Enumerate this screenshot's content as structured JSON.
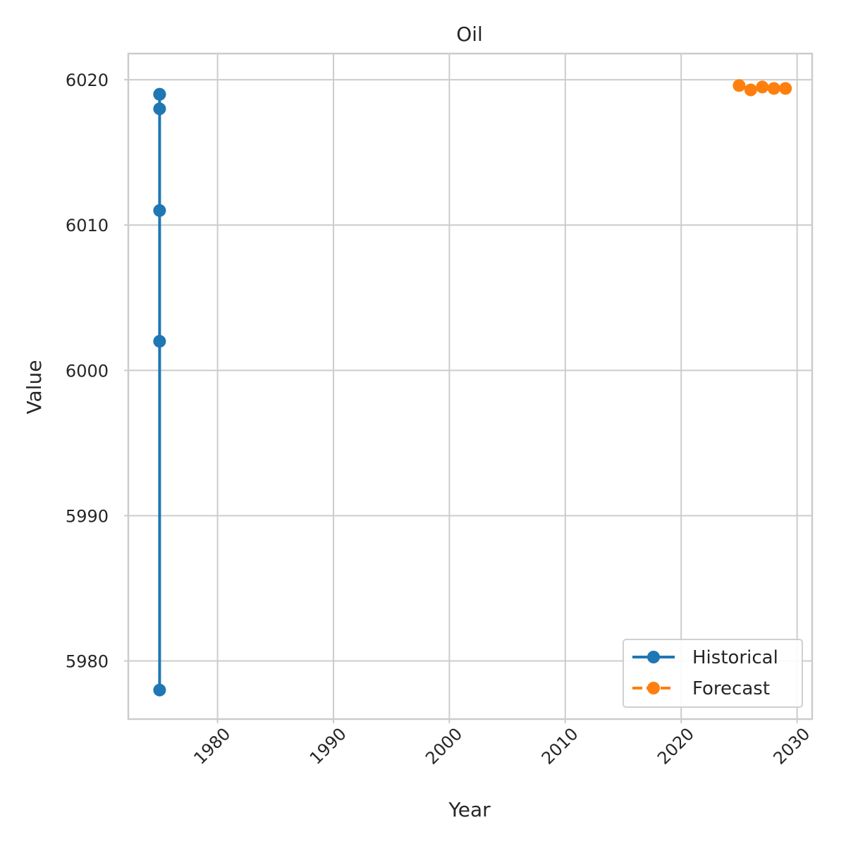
{
  "chart_data": {
    "type": "line",
    "title": "Oil",
    "xlabel": "Year",
    "ylabel": "Value",
    "xlim": [
      1972.3,
      2031.3
    ],
    "ylim": [
      5976,
      6021.8
    ],
    "x_ticks": [
      1980,
      1990,
      2000,
      2010,
      2020,
      2030
    ],
    "y_ticks": [
      5980,
      5990,
      6000,
      6010,
      6020
    ],
    "grid": true,
    "legend_position": "lower-right",
    "series": [
      {
        "name": "Historical",
        "color": "#1f77b4",
        "line_style": "solid",
        "marker": "circle",
        "x": [
          1975,
          1975,
          1975,
          1975,
          1975,
          1975
        ],
        "y": [
          5978,
          6002,
          6011,
          6018,
          6019,
          6019
        ]
      },
      {
        "name": "Forecast",
        "color": "#ff7f0e",
        "line_style": "dashed",
        "marker": "circle",
        "x": [
          2025,
          2026,
          2027,
          2028,
          2029
        ],
        "y": [
          6019.6,
          6019.3,
          6019.5,
          6019.4,
          6019.4
        ]
      }
    ]
  }
}
